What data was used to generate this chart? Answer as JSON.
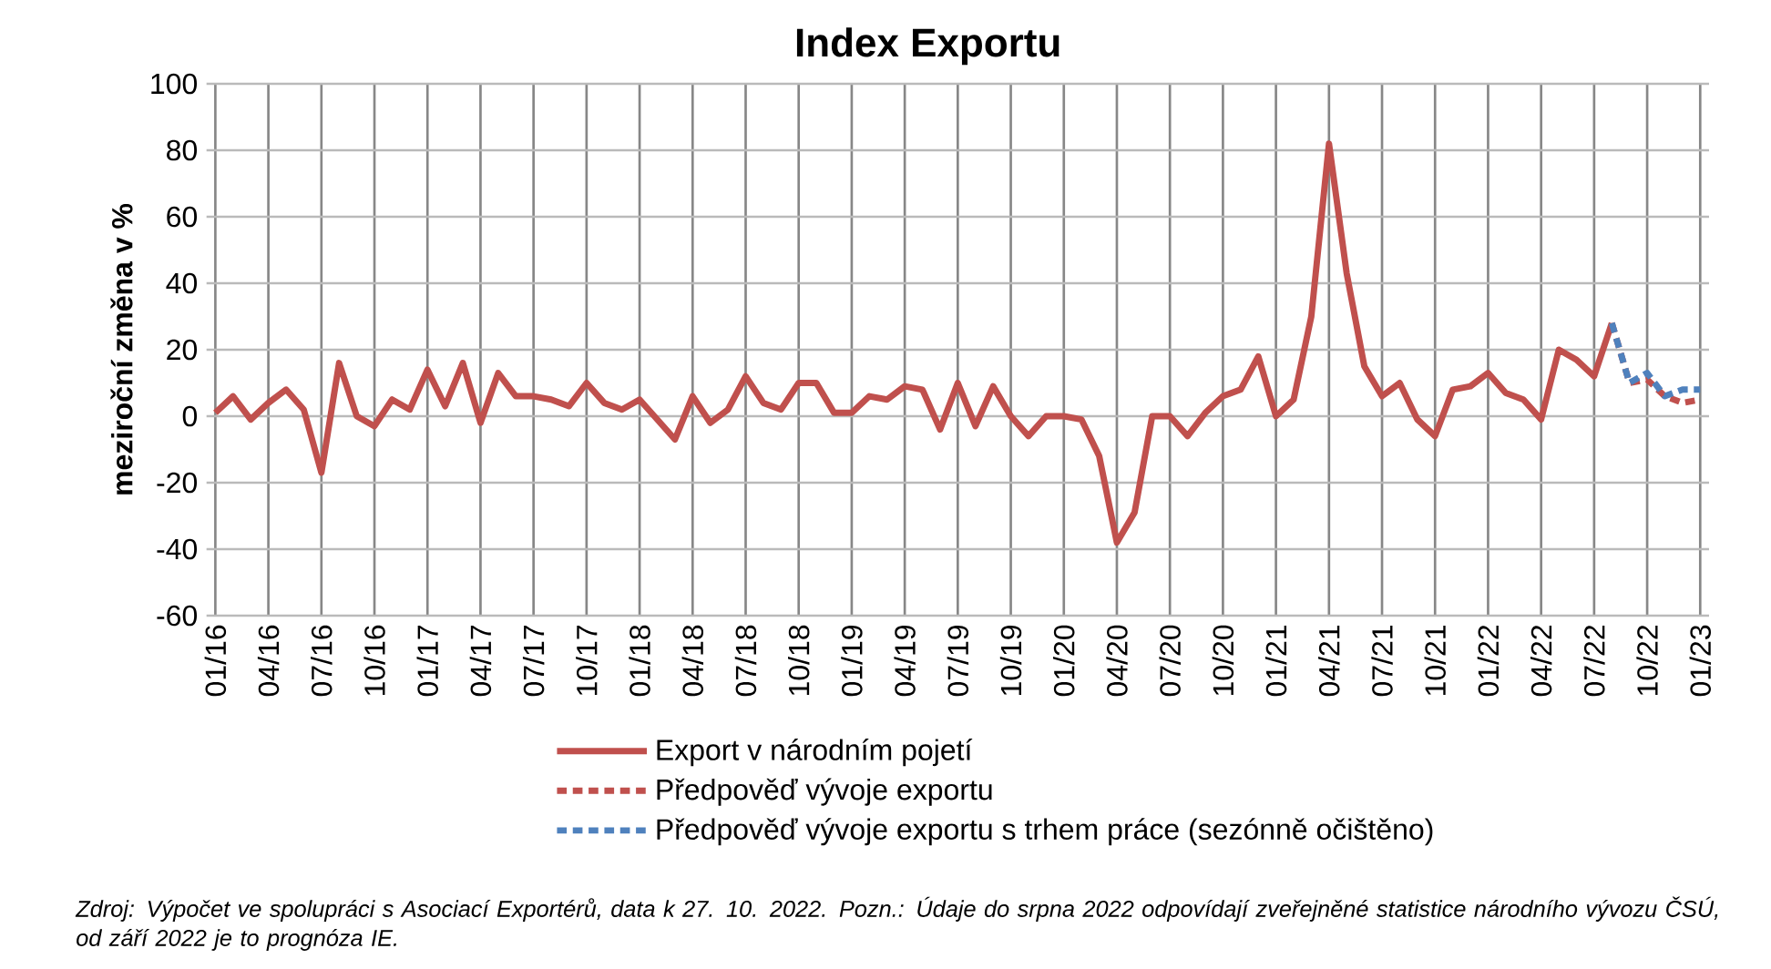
{
  "chart_data": {
    "type": "line",
    "title": "Index Exportu",
    "ylabel": "meziroční změna v %",
    "categories": [
      "01/16",
      null,
      null,
      "04/16",
      null,
      null,
      "07/16",
      null,
      null,
      "10/16",
      null,
      null,
      "01/17",
      null,
      null,
      "04/17",
      null,
      null,
      "07/17",
      null,
      null,
      "10/17",
      null,
      null,
      "01/18",
      null,
      null,
      "04/18",
      null,
      null,
      "07/18",
      null,
      null,
      "10/18",
      null,
      null,
      "01/19",
      null,
      null,
      "04/19",
      null,
      null,
      "07/19",
      null,
      null,
      "10/19",
      null,
      null,
      "01/20",
      null,
      null,
      "04/20",
      null,
      null,
      "07/20",
      null,
      null,
      "10/20",
      null,
      null,
      "01/21",
      null,
      null,
      "04/21",
      null,
      null,
      "07/21",
      null,
      null,
      "10/21",
      null,
      null,
      "01/22",
      null,
      null,
      "04/22",
      null,
      null,
      "07/22",
      null,
      null,
      "10/22",
      null,
      null,
      "01/23"
    ],
    "series": [
      {
        "name": "Export v národním pojetí",
        "color": "#c0504d",
        "line_style": "solid",
        "values": [
          1,
          6,
          -1,
          4,
          8,
          2,
          -17,
          16,
          0,
          -3,
          5,
          2,
          14,
          3,
          16,
          -2,
          13,
          6,
          6,
          5,
          3,
          10,
          4,
          2,
          5,
          -1,
          -7,
          6,
          -2,
          2,
          12,
          4,
          2,
          10,
          10,
          1,
          1,
          6,
          5,
          9,
          8,
          -4,
          10,
          -3,
          9,
          0,
          -6,
          0,
          0,
          -1,
          -12,
          -38,
          -29,
          0,
          0,
          -6,
          1,
          6,
          8,
          18,
          0,
          5,
          30,
          82,
          43,
          15,
          6,
          10,
          -1,
          -6,
          8,
          9,
          13,
          7,
          5,
          -1,
          20,
          17,
          12,
          28,
          null,
          null,
          null,
          null,
          null
        ]
      },
      {
        "name": "Předpověď vývoje exportu",
        "color": "#c0504d",
        "line_style": "dashed",
        "values": [
          null,
          null,
          null,
          null,
          null,
          null,
          null,
          null,
          null,
          null,
          null,
          null,
          null,
          null,
          null,
          null,
          null,
          null,
          null,
          null,
          null,
          null,
          null,
          null,
          null,
          null,
          null,
          null,
          null,
          null,
          null,
          null,
          null,
          null,
          null,
          null,
          null,
          null,
          null,
          null,
          null,
          null,
          null,
          null,
          null,
          null,
          null,
          null,
          null,
          null,
          null,
          null,
          null,
          null,
          null,
          null,
          null,
          null,
          null,
          null,
          null,
          null,
          null,
          null,
          null,
          null,
          null,
          null,
          null,
          null,
          null,
          null,
          null,
          null,
          null,
          null,
          null,
          null,
          null,
          28,
          10,
          11,
          6,
          4,
          5
        ]
      },
      {
        "name": "Předpověď vývoje exportu s trhem práce (sezónně očištěno)",
        "color": "#4f81bd",
        "line_style": "dashed",
        "values": [
          null,
          null,
          null,
          null,
          null,
          null,
          null,
          null,
          null,
          null,
          null,
          null,
          null,
          null,
          null,
          null,
          null,
          null,
          null,
          null,
          null,
          null,
          null,
          null,
          null,
          null,
          null,
          null,
          null,
          null,
          null,
          null,
          null,
          null,
          null,
          null,
          null,
          null,
          null,
          null,
          null,
          null,
          null,
          null,
          null,
          null,
          null,
          null,
          null,
          null,
          null,
          null,
          null,
          null,
          null,
          null,
          null,
          null,
          null,
          null,
          null,
          null,
          null,
          null,
          null,
          null,
          null,
          null,
          null,
          null,
          null,
          null,
          null,
          null,
          null,
          null,
          null,
          null,
          null,
          28,
          10,
          13,
          6,
          8,
          8
        ]
      }
    ],
    "ylim": [
      -60,
      100
    ],
    "yticks": [
      -60,
      -40,
      -20,
      0,
      20,
      40,
      60,
      80,
      100
    ],
    "grid": true,
    "legend": "bottom",
    "annotations": [
      "Zdroj: Výpočet ve spolupráci s Asociací Exportérů, data k 27. 10. 2022. Pozn.: Údaje do srpna 2022 odpovídají zveřejněné statistice národního vývozu ČSÚ, od září 2022 je to prognóza IE."
    ]
  }
}
